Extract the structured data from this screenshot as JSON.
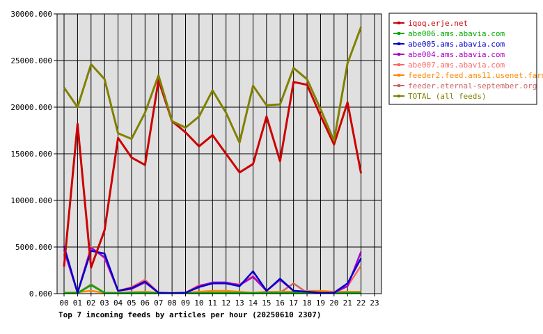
{
  "chart_data": {
    "type": "line",
    "title": "Top 7 incoming feeds by articles per hour (20250610 2307)",
    "x_categories": [
      "00",
      "01",
      "02",
      "03",
      "04",
      "05",
      "06",
      "07",
      "08",
      "09",
      "10",
      "11",
      "12",
      "13",
      "14",
      "15",
      "16",
      "17",
      "18",
      "19",
      "20",
      "21",
      "22",
      "23"
    ],
    "y_ticks": [
      "0.000",
      "5000.000",
      "10000.000",
      "15000.000",
      "20000.000",
      "25000.000",
      "30000.000"
    ],
    "ylim": [
      0,
      30000
    ],
    "grid": true,
    "legend_position": "right",
    "series": [
      {
        "name": "iqoq.erje.net",
        "color": "#cc0000",
        "values": [
          2900,
          18200,
          2800,
          6800,
          16700,
          14600,
          13800,
          22900,
          18500,
          17300,
          15800,
          17000,
          15000,
          13000,
          13900,
          19000,
          14200,
          22700,
          22400,
          19100,
          16000,
          20500,
          12900,
          null
        ]
      },
      {
        "name": "abe006.ams.abavia.com",
        "color": "#00aa00",
        "values": [
          100,
          50,
          900,
          100,
          50,
          100,
          100,
          50,
          50,
          50,
          50,
          100,
          100,
          100,
          50,
          100,
          100,
          100,
          50,
          50,
          50,
          100,
          100,
          null
        ]
      },
      {
        "name": "abe005.ams.abavia.com",
        "color": "#0000cc",
        "values": [
          5100,
          100,
          4600,
          4300,
          300,
          600,
          1300,
          100,
          50,
          100,
          700,
          1100,
          1100,
          800,
          2400,
          300,
          1600,
          300,
          200,
          100,
          100,
          1100,
          3800,
          null
        ]
      },
      {
        "name": "abe004.ams.abavia.com",
        "color": "#aa00cc",
        "values": [
          4700,
          100,
          4900,
          3900,
          300,
          500,
          1200,
          100,
          50,
          100,
          800,
          1200,
          1200,
          900,
          1800,
          300,
          1500,
          300,
          200,
          100,
          100,
          800,
          4500,
          null
        ]
      },
      {
        "name": "abe007.ams.abavia.com",
        "color": "#ff6666",
        "values": [
          4600,
          100,
          5000,
          3800,
          300,
          700,
          1500,
          100,
          50,
          100,
          900,
          1100,
          1100,
          1000,
          1900,
          300,
          1600,
          300,
          200,
          100,
          100,
          800,
          3000,
          null
        ]
      },
      {
        "name": "feeder2.feed.ams11.usenet.farm",
        "color": "#ff8800",
        "values": [
          100,
          150,
          300,
          100,
          100,
          150,
          200,
          100,
          50,
          100,
          200,
          300,
          300,
          200,
          100,
          200,
          200,
          200,
          300,
          300,
          200,
          200,
          200,
          null
        ]
      },
      {
        "name": "feeder.eternal-september.org",
        "color": "#cc6666",
        "values": [
          50,
          50,
          1000,
          100,
          50,
          50,
          50,
          50,
          50,
          50,
          50,
          100,
          100,
          50,
          50,
          100,
          100,
          1100,
          100,
          50,
          50,
          50,
          100,
          null
        ]
      },
      {
        "name": "TOTAL (all feeds)",
        "color": "#808000",
        "values": [
          22100,
          20000,
          24600,
          23000,
          17200,
          16600,
          19400,
          23400,
          18500,
          17800,
          19000,
          21800,
          19400,
          16200,
          22300,
          20200,
          20300,
          24200,
          23000,
          19800,
          16400,
          24700,
          28600,
          null
        ]
      }
    ]
  }
}
